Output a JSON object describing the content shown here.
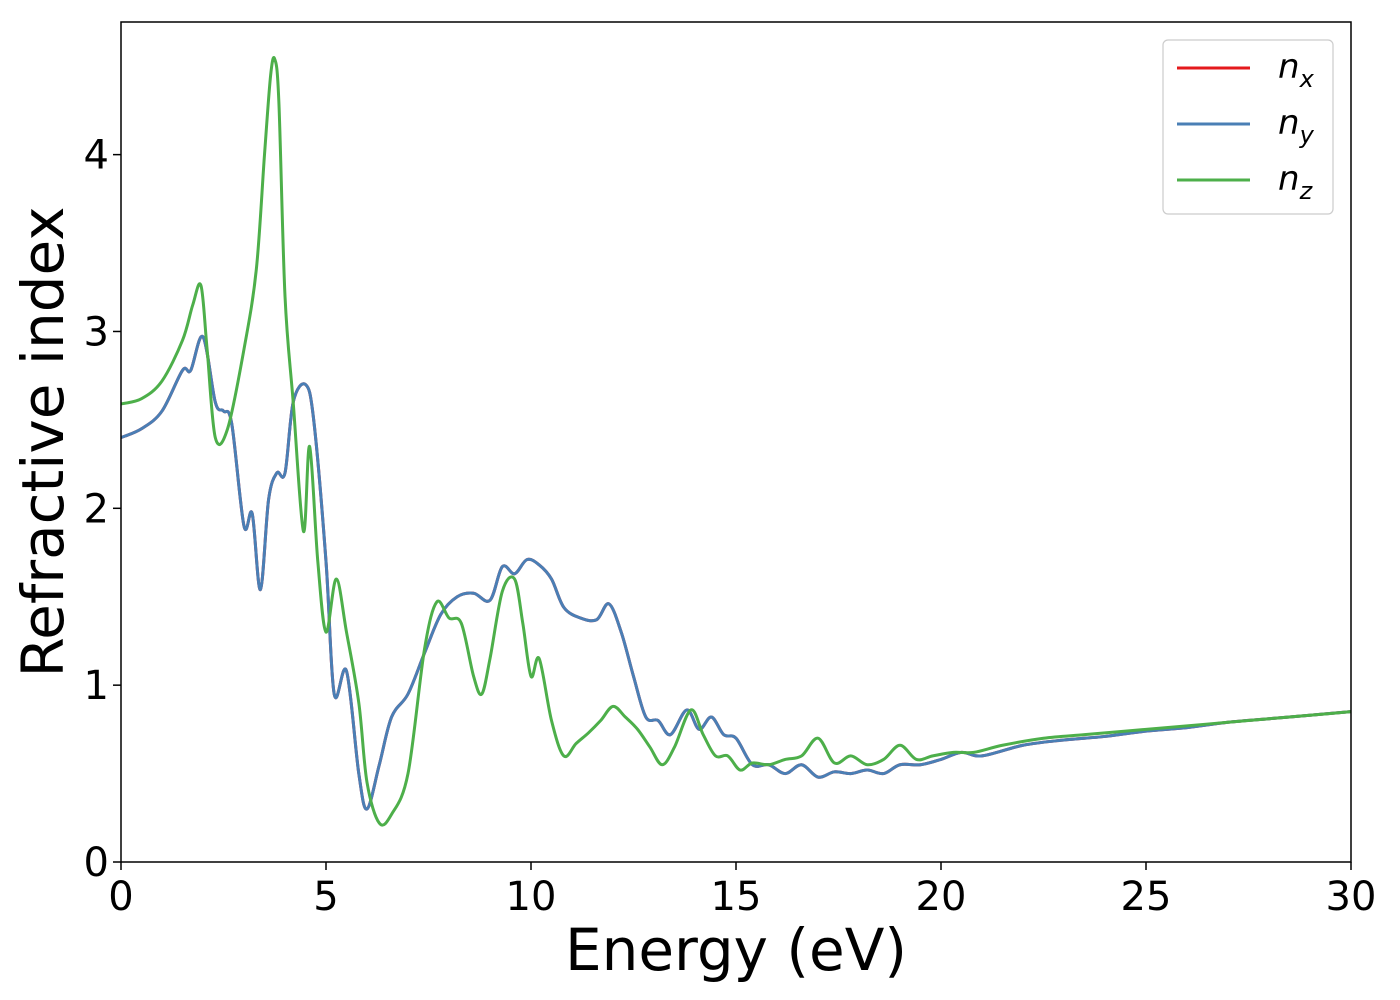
{
  "chart_data": {
    "type": "line",
    "title": "",
    "xlabel": "Energy (eV)",
    "ylabel": "Refractive index",
    "xlim": [
      0,
      30
    ],
    "ylim": [
      0,
      4.75
    ],
    "xticks": [
      0,
      5,
      10,
      15,
      20,
      25,
      30
    ],
    "xtick_labels": [
      "0",
      "5",
      "10",
      "15",
      "20",
      "25",
      "30"
    ],
    "yticks": [
      0,
      1,
      2,
      3,
      4
    ],
    "ytick_labels": [
      "0",
      "1",
      "2",
      "3",
      "4"
    ],
    "grid": false,
    "legend_position": "top-right",
    "series": [
      {
        "name": "n_x",
        "legend_main": "n",
        "legend_sub": "x",
        "color": "#e41a1c",
        "x": [
          0,
          0.5,
          1.0,
          1.5,
          1.7,
          2.0,
          2.3,
          2.5,
          2.7,
          3.0,
          3.2,
          3.4,
          3.6,
          3.8,
          4.0,
          4.2,
          4.5,
          4.7,
          5.0,
          5.2,
          5.5,
          5.8,
          6.0,
          6.3,
          6.6,
          7.0,
          7.4,
          7.8,
          8.2,
          8.6,
          9.0,
          9.3,
          9.6,
          9.9,
          10.2,
          10.5,
          10.8,
          11.2,
          11.6,
          11.9,
          12.2,
          12.5,
          12.8,
          13.1,
          13.4,
          13.8,
          14.1,
          14.4,
          14.7,
          15.0,
          15.4,
          15.8,
          16.2,
          16.6,
          17.0,
          17.4,
          17.8,
          18.2,
          18.6,
          19.0,
          19.5,
          20.0,
          20.5,
          21.0,
          22.0,
          23.0,
          24.0,
          25.0,
          26.0,
          27.0,
          28.0,
          29.0,
          30.0
        ],
        "y": [
          2.4,
          2.45,
          2.55,
          2.78,
          2.78,
          2.97,
          2.6,
          2.55,
          2.48,
          1.9,
          1.97,
          1.54,
          2.05,
          2.2,
          2.2,
          2.6,
          2.7,
          2.5,
          1.7,
          0.95,
          1.08,
          0.5,
          0.3,
          0.55,
          0.82,
          0.95,
          1.18,
          1.4,
          1.5,
          1.52,
          1.48,
          1.67,
          1.63,
          1.71,
          1.68,
          1.6,
          1.44,
          1.38,
          1.37,
          1.46,
          1.3,
          1.05,
          0.82,
          0.8,
          0.72,
          0.86,
          0.75,
          0.82,
          0.72,
          0.7,
          0.55,
          0.55,
          0.5,
          0.55,
          0.48,
          0.51,
          0.5,
          0.52,
          0.5,
          0.55,
          0.55,
          0.58,
          0.62,
          0.6,
          0.66,
          0.69,
          0.71,
          0.74,
          0.76,
          0.79,
          0.81,
          0.83,
          0.85
        ]
      },
      {
        "name": "n_y",
        "legend_main": "n",
        "legend_sub": "y",
        "color": "#4a7fb5",
        "x": [
          0,
          0.5,
          1.0,
          1.5,
          1.7,
          2.0,
          2.3,
          2.5,
          2.7,
          3.0,
          3.2,
          3.4,
          3.6,
          3.8,
          4.0,
          4.2,
          4.5,
          4.7,
          5.0,
          5.2,
          5.5,
          5.8,
          6.0,
          6.3,
          6.6,
          7.0,
          7.4,
          7.8,
          8.2,
          8.6,
          9.0,
          9.3,
          9.6,
          9.9,
          10.2,
          10.5,
          10.8,
          11.2,
          11.6,
          11.9,
          12.2,
          12.5,
          12.8,
          13.1,
          13.4,
          13.8,
          14.1,
          14.4,
          14.7,
          15.0,
          15.4,
          15.8,
          16.2,
          16.6,
          17.0,
          17.4,
          17.8,
          18.2,
          18.6,
          19.0,
          19.5,
          20.0,
          20.5,
          21.0,
          22.0,
          23.0,
          24.0,
          25.0,
          26.0,
          27.0,
          28.0,
          29.0,
          30.0
        ],
        "y": [
          2.4,
          2.45,
          2.55,
          2.78,
          2.78,
          2.97,
          2.6,
          2.55,
          2.48,
          1.9,
          1.97,
          1.54,
          2.05,
          2.2,
          2.2,
          2.6,
          2.7,
          2.5,
          1.7,
          0.95,
          1.08,
          0.5,
          0.3,
          0.55,
          0.82,
          0.95,
          1.18,
          1.4,
          1.5,
          1.52,
          1.48,
          1.67,
          1.63,
          1.71,
          1.68,
          1.6,
          1.44,
          1.38,
          1.37,
          1.46,
          1.3,
          1.05,
          0.82,
          0.8,
          0.72,
          0.86,
          0.75,
          0.82,
          0.72,
          0.7,
          0.55,
          0.55,
          0.5,
          0.55,
          0.48,
          0.51,
          0.5,
          0.52,
          0.5,
          0.55,
          0.55,
          0.58,
          0.62,
          0.6,
          0.66,
          0.69,
          0.71,
          0.74,
          0.76,
          0.79,
          0.81,
          0.83,
          0.85
        ]
      },
      {
        "name": "n_z",
        "legend_main": "n",
        "legend_sub": "z",
        "color": "#4daf4a",
        "x": [
          0,
          0.5,
          1.0,
          1.5,
          1.75,
          1.95,
          2.1,
          2.3,
          2.6,
          3.0,
          3.3,
          3.5,
          3.65,
          3.75,
          3.85,
          4.0,
          4.2,
          4.45,
          4.6,
          4.8,
          5.0,
          5.25,
          5.5,
          5.8,
          6.0,
          6.3,
          6.6,
          7.0,
          7.4,
          7.7,
          8.0,
          8.3,
          8.6,
          8.8,
          9.0,
          9.3,
          9.6,
          9.8,
          10.0,
          10.2,
          10.5,
          10.8,
          11.1,
          11.4,
          11.7,
          12.0,
          12.3,
          12.6,
          12.9,
          13.2,
          13.5,
          13.9,
          14.2,
          14.5,
          14.8,
          15.1,
          15.4,
          15.8,
          16.2,
          16.6,
          17.0,
          17.4,
          17.8,
          18.2,
          18.6,
          19.0,
          19.4,
          19.8,
          20.3,
          20.8,
          21.5,
          22.5,
          23.5,
          24.5,
          25.5,
          26.5,
          27.5,
          28.5,
          29.5,
          30.0
        ],
        "y": [
          2.59,
          2.62,
          2.72,
          2.95,
          3.15,
          3.26,
          2.9,
          2.4,
          2.45,
          2.9,
          3.35,
          4.0,
          4.45,
          4.54,
          4.3,
          3.2,
          2.6,
          1.87,
          2.35,
          1.7,
          1.3,
          1.6,
          1.3,
          0.9,
          0.45,
          0.22,
          0.27,
          0.5,
          1.2,
          1.47,
          1.38,
          1.35,
          1.05,
          0.95,
          1.15,
          1.53,
          1.6,
          1.35,
          1.05,
          1.15,
          0.8,
          0.6,
          0.67,
          0.73,
          0.8,
          0.88,
          0.82,
          0.75,
          0.65,
          0.55,
          0.65,
          0.86,
          0.72,
          0.6,
          0.6,
          0.52,
          0.56,
          0.55,
          0.58,
          0.6,
          0.7,
          0.56,
          0.6,
          0.55,
          0.58,
          0.66,
          0.58,
          0.6,
          0.62,
          0.62,
          0.66,
          0.7,
          0.72,
          0.74,
          0.76,
          0.78,
          0.8,
          0.82,
          0.84,
          0.85
        ]
      }
    ]
  }
}
